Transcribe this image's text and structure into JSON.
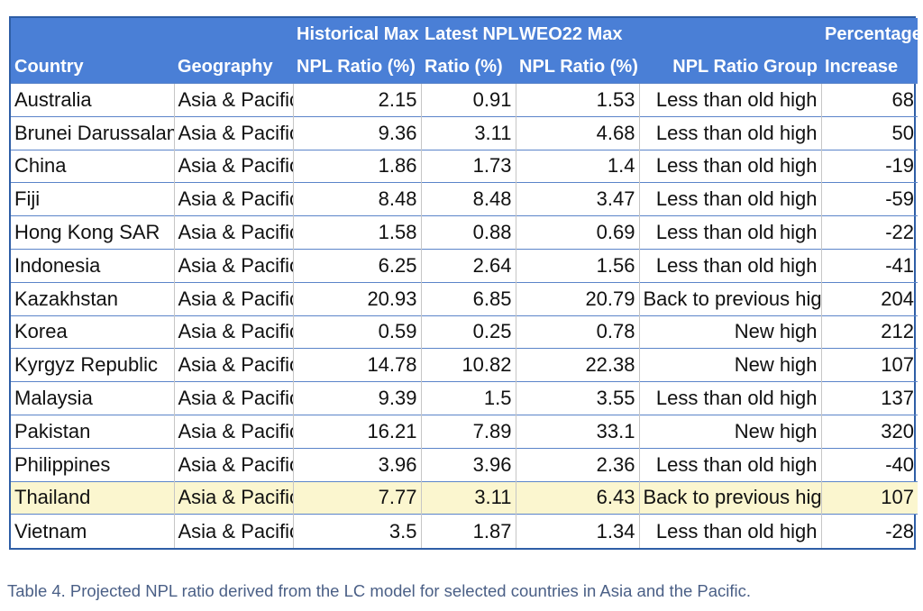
{
  "table": {
    "headers": {
      "country": [
        "",
        "Country"
      ],
      "geography": [
        "",
        "Geography"
      ],
      "historical_max": [
        "Historical Max",
        "NPL Ratio (%)"
      ],
      "latest_npl": [
        "Latest NPL",
        "Ratio (%)"
      ],
      "weo22_max": [
        "WEO22 Max",
        "NPL Ratio (%)"
      ],
      "npl_group": [
        "",
        "NPL Ratio Group"
      ],
      "pct_increase": [
        "Percentage",
        "Increase"
      ]
    },
    "rows": [
      {
        "country": "Australia",
        "geography": "Asia & Pacific",
        "historical_max": "2.15",
        "latest_npl": "0.91",
        "weo22_max": "1.53",
        "npl_group": "Less than old high",
        "pct_increase": "68"
      },
      {
        "country": "Brunei Darussalam",
        "geography": "Asia & Pacific",
        "historical_max": "9.36",
        "latest_npl": "3.11",
        "weo22_max": "4.68",
        "npl_group": "Less than old high",
        "pct_increase": "50"
      },
      {
        "country": "China",
        "geography": "Asia & Pacific",
        "historical_max": "1.86",
        "latest_npl": "1.73",
        "weo22_max": "1.4",
        "npl_group": "Less than old high",
        "pct_increase": "-19"
      },
      {
        "country": "Fiji",
        "geography": "Asia & Pacific",
        "historical_max": "8.48",
        "latest_npl": "8.48",
        "weo22_max": "3.47",
        "npl_group": "Less than old high",
        "pct_increase": "-59"
      },
      {
        "country": "Hong Kong SAR",
        "geography": "Asia & Pacific",
        "historical_max": "1.58",
        "latest_npl": "0.88",
        "weo22_max": "0.69",
        "npl_group": "Less than old high",
        "pct_increase": "-22"
      },
      {
        "country": "Indonesia",
        "geography": "Asia & Pacific",
        "historical_max": "6.25",
        "latest_npl": "2.64",
        "weo22_max": "1.56",
        "npl_group": "Less than old high",
        "pct_increase": "-41"
      },
      {
        "country": "Kazakhstan",
        "geography": "Asia & Pacific",
        "historical_max": "20.93",
        "latest_npl": "6.85",
        "weo22_max": "20.79",
        "npl_group": "Back to previous high",
        "pct_increase": "204"
      },
      {
        "country": "Korea",
        "geography": "Asia & Pacific",
        "historical_max": "0.59",
        "latest_npl": "0.25",
        "weo22_max": "0.78",
        "npl_group": "New high",
        "pct_increase": "212"
      },
      {
        "country": "Kyrgyz Republic",
        "geography": "Asia & Pacific",
        "historical_max": "14.78",
        "latest_npl": "10.82",
        "weo22_max": "22.38",
        "npl_group": "New high",
        "pct_increase": "107"
      },
      {
        "country": "Malaysia",
        "geography": "Asia & Pacific",
        "historical_max": "9.39",
        "latest_npl": "1.5",
        "weo22_max": "3.55",
        "npl_group": "Less than old high",
        "pct_increase": "137"
      },
      {
        "country": "Pakistan",
        "geography": "Asia & Pacific",
        "historical_max": "16.21",
        "latest_npl": "7.89",
        "weo22_max": "33.1",
        "npl_group": "New high",
        "pct_increase": "320"
      },
      {
        "country": "Philippines",
        "geography": "Asia & Pacific",
        "historical_max": "3.96",
        "latest_npl": "3.96",
        "weo22_max": "2.36",
        "npl_group": "Less than old high",
        "pct_increase": "-40"
      },
      {
        "country": "Thailand",
        "geography": "Asia & Pacific",
        "historical_max": "7.77",
        "latest_npl": "3.11",
        "weo22_max": "6.43",
        "npl_group": "Back to previous high",
        "pct_increase": "107",
        "highlighted": true
      },
      {
        "country": "Vietnam",
        "geography": "Asia & Pacific",
        "historical_max": "3.5",
        "latest_npl": "1.87",
        "weo22_max": "1.34",
        "npl_group": "Less than old high",
        "pct_increase": "-28"
      }
    ]
  },
  "caption": "Table 4. Projected NPL ratio derived from the LC model for selected countries in Asia and the Pacific.",
  "colors": {
    "header_bg": "#4a7fd6",
    "header_text": "#ffffff",
    "row_border": "#5b84c9",
    "highlight": "#fbf6cf",
    "caption_text": "#4a5f86"
  }
}
